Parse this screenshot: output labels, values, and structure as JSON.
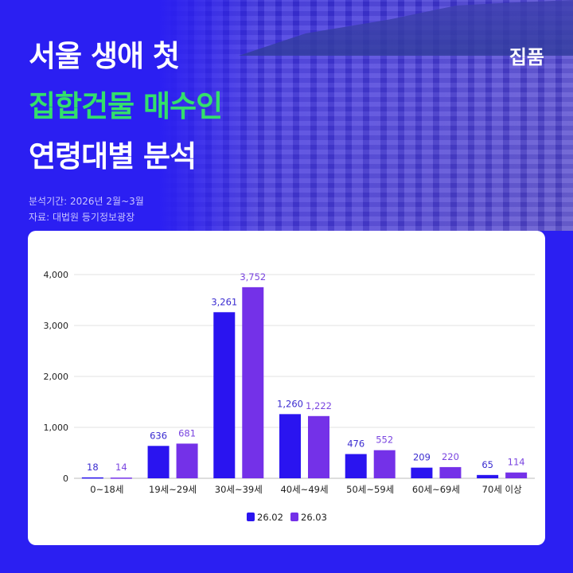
{
  "header": {
    "title_line1": "서울 생애 첫",
    "title_line2": "집합건물 매수인",
    "title_line3": "연령대별 분석",
    "brand": "집품",
    "period": "분석기간: 2026년 2월~3월",
    "source": "자료: 대법원 등기정보광장"
  },
  "colors": {
    "background": "#2b1ff2",
    "title_accent": "#33e06b",
    "series1": "#2a14f0",
    "series2": "#7431e8"
  },
  "chart_data": {
    "type": "bar",
    "categories": [
      "0~18세",
      "19세~29세",
      "30세~39세",
      "40세~49세",
      "50세~59세",
      "60세~69세",
      "70세 이상"
    ],
    "series": [
      {
        "name": "26.02",
        "values": [
          18,
          636,
          3261,
          1260,
          476,
          209,
          65
        ]
      },
      {
        "name": "26.03",
        "values": [
          14,
          681,
          3752,
          1222,
          552,
          220,
          114
        ]
      }
    ],
    "value_labels": [
      [
        "18",
        "636",
        "3,261",
        "1,260",
        "476",
        "209",
        "65"
      ],
      [
        "14",
        "681",
        "3,752",
        "1,222",
        "552",
        "220",
        "114"
      ]
    ],
    "yticks": [
      "0",
      "1,000",
      "2,000",
      "3,000",
      "4,000"
    ],
    "ylim": [
      0,
      4000
    ],
    "grid": true,
    "legend": "bottom"
  }
}
